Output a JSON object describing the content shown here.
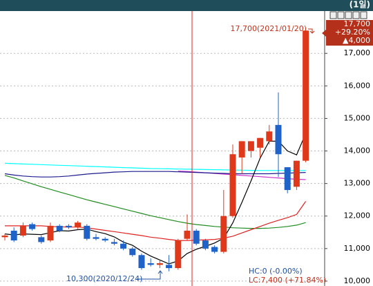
{
  "chart_data": {
    "type": "candlestick",
    "header": "(1일)",
    "categories": [
      null,
      null,
      null,
      null,
      null,
      null,
      null,
      null,
      null,
      null,
      null,
      null,
      null,
      null,
      null,
      null,
      null,
      null,
      null,
      null,
      null,
      null,
      null,
      null,
      null,
      null,
      null,
      null,
      null,
      null,
      null,
      null,
      null,
      null
    ],
    "open": [
      11350,
      11550,
      11400,
      11750,
      11350,
      11250,
      11700,
      11700,
      11650,
      11700,
      11350,
      11300,
      11200,
      11150,
      11000,
      10800,
      10550,
      10500,
      10500,
      10400,
      11300,
      11550,
      11250,
      11050,
      10900,
      12000,
      13800,
      14000,
      14100,
      14300,
      14800,
      13500,
      12900,
      13700
    ],
    "high": [
      11450,
      11650,
      11800,
      11800,
      11400,
      11800,
      11750,
      11750,
      11850,
      11750,
      11450,
      11350,
      11300,
      11250,
      11050,
      10850,
      10700,
      10650,
      10800,
      11300,
      12050,
      11600,
      11300,
      11100,
      12800,
      14200,
      14300,
      14300,
      14400,
      14800,
      15800,
      13500,
      13700,
      17700
    ],
    "low": [
      11250,
      11200,
      11350,
      11550,
      11150,
      11200,
      11500,
      11600,
      11600,
      11250,
      11250,
      11200,
      11100,
      10950,
      10750,
      10350,
      10450,
      10400,
      10300,
      10350,
      11250,
      11100,
      10950,
      10850,
      10850,
      11950,
      13300,
      13800,
      13800,
      14200,
      13200,
      12700,
      12800,
      13650
    ],
    "close": [
      11400,
      11250,
      11700,
      11600,
      11200,
      11700,
      11550,
      11650,
      11800,
      11300,
      11300,
      11250,
      11150,
      11000,
      10800,
      10400,
      10500,
      10550,
      10400,
      11250,
      11550,
      11150,
      11000,
      10900,
      12000,
      13900,
      14300,
      14300,
      14400,
      14600,
      13900,
      12800,
      13700,
      17700
    ],
    "up_color": "#e0381a",
    "down_color": "#1f62c8",
    "lines": [
      {
        "color": "#00ffff",
        "values": [
          13620,
          13610,
          13600,
          13590,
          13580,
          13570,
          13560,
          13550,
          13540,
          13530,
          13520,
          13510,
          13500,
          13490,
          13480,
          13470,
          13460,
          13455,
          13450,
          13445,
          13440,
          13435,
          13430,
          13425,
          13420,
          13415,
          13410,
          13405,
          13400,
          13400,
          13400,
          13400,
          13400,
          13400
        ]
      },
      {
        "color": "#cc33cc",
        "values": [
          null,
          null,
          null,
          null,
          null,
          null,
          null,
          null,
          null,
          null,
          null,
          null,
          null,
          null,
          null,
          null,
          null,
          null,
          null,
          13380,
          13370,
          13350,
          13330,
          13310,
          13290,
          13270,
          13250,
          13230,
          13210,
          13190,
          13170,
          13150,
          13130,
          13120
        ]
      },
      {
        "color": "#1a1a8c",
        "values": [
          13300,
          13260,
          13230,
          13210,
          13200,
          13200,
          13210,
          13230,
          13260,
          13290,
          13310,
          13330,
          13350,
          13360,
          13370,
          13370,
          13370,
          13370,
          13370,
          13360,
          13350,
          13340,
          13330,
          13320,
          13310,
          13300,
          13300,
          13300,
          13300,
          13300,
          13310,
          13320,
          13330,
          13340
        ]
      },
      {
        "color": "#1e8c1e",
        "values": [
          13250,
          13170,
          13080,
          12990,
          12900,
          12820,
          12740,
          12660,
          12580,
          12500,
          12430,
          12360,
          12290,
          12220,
          12150,
          12080,
          12010,
          11950,
          11890,
          11830,
          11780,
          11740,
          11710,
          11680,
          11660,
          11640,
          11630,
          11620,
          11620,
          11630,
          11650,
          11680,
          11720,
          11800
        ]
      },
      {
        "color": "#e02020",
        "values": [
          11700,
          11700,
          11700,
          11700,
          11700,
          11680,
          11670,
          11660,
          11660,
          11640,
          11600,
          11560,
          11520,
          11480,
          11440,
          11400,
          11350,
          11320,
          11280,
          11250,
          11250,
          11260,
          11270,
          11280,
          11320,
          11380,
          11480,
          11580,
          11680,
          11780,
          11870,
          11950,
          12050,
          12450
        ]
      },
      {
        "color": "#000000",
        "values": [
          11450,
          11420,
          11450,
          11440,
          11430,
          11490,
          11550,
          11540,
          11580,
          11600,
          11520,
          11460,
          11360,
          11200,
          11100,
          10920,
          10770,
          10650,
          10530,
          10620,
          10850,
          10980,
          11070,
          11170,
          11320,
          11790,
          12420,
          13080,
          13780,
          14300,
          14300,
          14000,
          13880,
          14540
        ]
      }
    ],
    "ylim": [
      9850,
      18300
    ],
    "yticks": [
      {
        "value": 10000,
        "label": "10,000"
      },
      {
        "value": 11000,
        "label": "11,000"
      },
      {
        "value": 12000,
        "label": "12,000"
      },
      {
        "value": 13000,
        "label": "13,000"
      },
      {
        "value": 14000,
        "label": "14,000"
      },
      {
        "value": 15000,
        "label": "15,000"
      },
      {
        "value": 16000,
        "label": "16,000"
      },
      {
        "value": 17000,
        "label": "17,000"
      }
    ],
    "grid": true,
    "high_note": "17,700(2021/01/20)",
    "low_note": "10,300(2020/12/24)",
    "hc_note": "HC:0 (-0.00%)",
    "lc_note": "LC:7,400 (+71.84%)",
    "price_box": [
      "17,700",
      "+29.20%",
      "▲4,000"
    ]
  }
}
